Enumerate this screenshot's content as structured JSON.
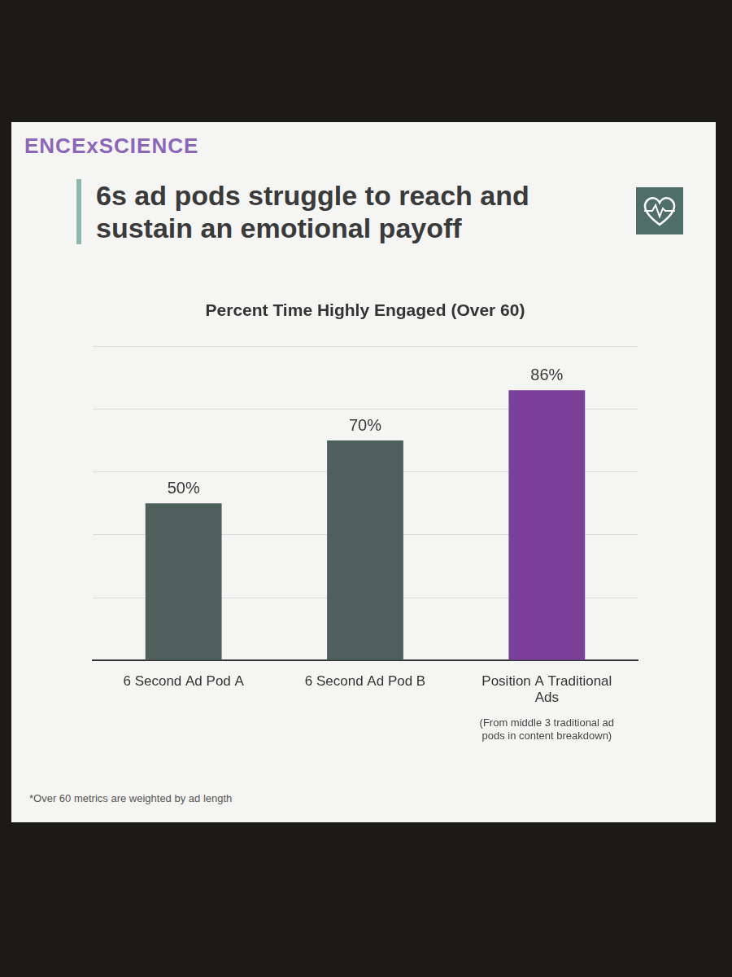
{
  "chart_data": {
    "type": "bar",
    "logo": "ENCExSCIENCE",
    "title": "6s ad pods struggle to reach and sustain an emotional payoff",
    "subtitle": "Percent Time Highly Engaged (Over 60)",
    "categories": [
      "6 Second Ad Pod A",
      "6 Second Ad Pod B",
      "Position A Traditional Ads"
    ],
    "values": [
      50,
      70,
      86
    ],
    "value_labels": [
      "50%",
      "70%",
      "86%"
    ],
    "colors": [
      "#4e5f5c",
      "#4e5f5c",
      "#7a3f98"
    ],
    "ylim": [
      0,
      100
    ],
    "yticks": [
      0,
      20,
      40,
      60,
      80,
      100
    ],
    "grid": true,
    "tick_labels": "x",
    "data_labels": true,
    "annotations": [
      {
        "text": "(From middle 3 traditional ad pods in content breakdown)",
        "category": "Position A Traditional Ads"
      }
    ],
    "footnote": "*Over 60 metrics are weighted by ad length"
  }
}
